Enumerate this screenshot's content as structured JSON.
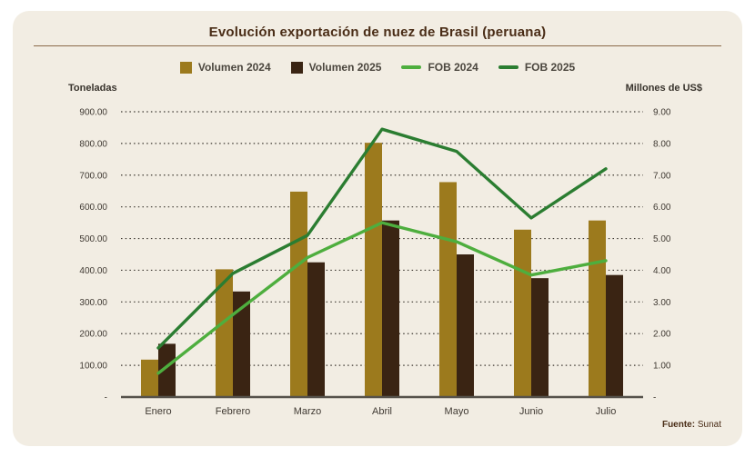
{
  "header": {
    "title": "Evolución exportación de nuez de Brasil (peruana)"
  },
  "legend": {
    "items": [
      {
        "label": "Volumen 2024",
        "swatch": "square",
        "color": "#9c7a1d"
      },
      {
        "label": "Volumen 2025",
        "swatch": "square",
        "color": "#3a2413"
      },
      {
        "label": "FOB 2024",
        "swatch": "line",
        "color": "#4eae3e"
      },
      {
        "label": "FOB 2025",
        "swatch": "line",
        "color": "#2b7d31"
      }
    ]
  },
  "axes": {
    "left": {
      "title": "Toneladas",
      "ticks": [
        "900.00",
        "800.00",
        "700.00",
        "600.00",
        "500.00",
        "400.00",
        "300.00",
        "200.00",
        "100.00",
        "-"
      ]
    },
    "right": {
      "title": "Millones de US$",
      "ticks": [
        "9.00",
        "8.00",
        "7.00",
        "6.00",
        "5.00",
        "4.00",
        "3.00",
        "2.00",
        "1.00",
        "-"
      ]
    }
  },
  "chart_data": {
    "type": "bar+line combo",
    "title": "Evolución exportación de nuez de Brasil (peruana)",
    "categories": [
      "Enero",
      "Febrero",
      "Marzo",
      "Abril",
      "Mayo",
      "Junio",
      "Julio"
    ],
    "series": [
      {
        "name": "Volumen 2024",
        "type": "bar",
        "axis": "left",
        "color": "#9c7a1d",
        "values": [
          118,
          403,
          648,
          802,
          678,
          528,
          557
        ]
      },
      {
        "name": "Volumen 2025",
        "type": "bar",
        "axis": "left",
        "color": "#3a2413",
        "values": [
          168,
          333,
          425,
          557,
          450,
          375,
          385
        ]
      },
      {
        "name": "FOB 2024",
        "type": "line",
        "axis": "right",
        "color": "#4eae3e",
        "values": [
          0.75,
          2.6,
          4.4,
          5.5,
          4.9,
          3.85,
          4.3
        ]
      },
      {
        "name": "FOB 2025",
        "type": "line",
        "axis": "right",
        "color": "#2b7d31",
        "values": [
          1.55,
          3.9,
          5.1,
          8.45,
          7.75,
          5.65,
          7.2
        ]
      }
    ],
    "left_ylabel": "Toneladas",
    "right_ylabel": "Millones de US$",
    "left_ylim": [
      0,
      900
    ],
    "right_ylim": [
      0,
      9
    ],
    "grid": "horizontal-dotted",
    "legend_position": "top"
  },
  "footer": {
    "source_label": "Fuente:",
    "source_value": "Sunat"
  }
}
